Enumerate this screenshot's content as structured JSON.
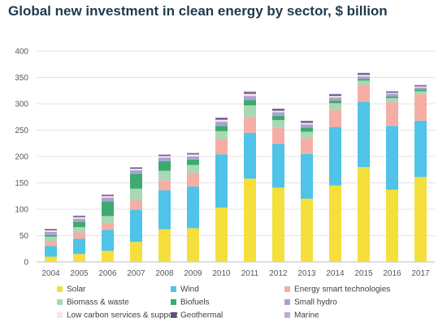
{
  "chart_data": {
    "type": "bar",
    "stacked": true,
    "title": "Global new investment in clean energy by sector, $ billion",
    "xlabel": "",
    "ylabel": "",
    "ylim": [
      0,
      400
    ],
    "yticks": [
      0,
      50,
      100,
      150,
      200,
      250,
      300,
      350,
      400
    ],
    "grid": true,
    "legend_position": "bottom",
    "categories": [
      "2004",
      "2005",
      "2006",
      "2007",
      "2008",
      "2009",
      "2010",
      "2011",
      "2012",
      "2013",
      "2014",
      "2015",
      "2016",
      "2017"
    ],
    "series": [
      {
        "name": "Solar",
        "color": "#f5df3c",
        "values": [
          10,
          15,
          21,
          38,
          62,
          64,
          103,
          158,
          141,
          120,
          145,
          180,
          137,
          161
        ]
      },
      {
        "name": "Wind",
        "color": "#4fc3e8",
        "values": [
          20,
          29,
          40,
          61,
          74,
          79,
          101,
          87,
          83,
          85,
          111,
          124,
          121,
          107
        ]
      },
      {
        "name": "Energy smart technologies",
        "color": "#f4aea5",
        "values": [
          10,
          12,
          13,
          18,
          19,
          26,
          29,
          30,
          30,
          30,
          32,
          32,
          45,
          50
        ]
      },
      {
        "name": "Biomass & waste",
        "color": "#a8d8b5",
        "values": [
          8,
          10,
          13,
          22,
          18,
          15,
          15,
          22,
          15,
          12,
          13,
          8,
          8,
          6
        ]
      },
      {
        "name": "Biofuels",
        "color": "#3daa6e",
        "values": [
          3,
          10,
          28,
          28,
          18,
          10,
          10,
          10,
          8,
          8,
          5,
          3,
          3,
          3
        ]
      },
      {
        "name": "Small hydro",
        "color": "#a7a3d1",
        "values": [
          6,
          6,
          7,
          7,
          7,
          6,
          8,
          8,
          7,
          6,
          6,
          5,
          5,
          4
        ]
      },
      {
        "name": "Low carbon services & support",
        "color": "#fbe2e3",
        "values": [
          3,
          3,
          3,
          3,
          3,
          4,
          4,
          4,
          3,
          3,
          3,
          3,
          2,
          2
        ]
      },
      {
        "name": "Geothermal",
        "color": "#5e4d87",
        "values": [
          2,
          2,
          2,
          2,
          2,
          2,
          3,
          3,
          3,
          3,
          3,
          3,
          2,
          2
        ]
      },
      {
        "name": "Marine",
        "color": "#c7a6d6",
        "values": [
          1,
          1,
          1,
          1,
          1,
          1,
          1,
          2,
          1,
          1,
          1,
          1,
          1,
          1
        ]
      }
    ]
  }
}
